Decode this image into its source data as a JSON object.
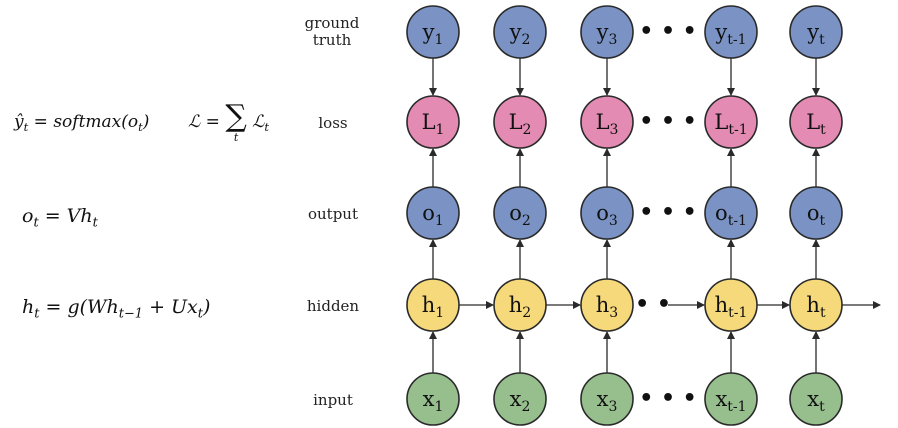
{
  "equations": {
    "yhat": {
      "symbol": "ŷ",
      "sub": "t",
      "rhs": "softmax(o",
      "rhs_sub": "t",
      "close": ")"
    },
    "loss": {
      "lhs": "ℒ",
      "eq": "=",
      "sum": "∑",
      "sum_sub": "t",
      "term": "ℒ",
      "term_sub": "t"
    },
    "output": {
      "lhs": "o",
      "lhs_sub": "t",
      "rhs": "= Vh",
      "rhs_sub": "t"
    },
    "hidden": {
      "lhs": "h",
      "lhs_sub": "t",
      "rhs1": "= g(Wh",
      "rhs1_sub": "t−1",
      "rhs2": "+ Ux",
      "rhs2_sub": "t",
      "close": ")"
    }
  },
  "row_labels": {
    "ground_truth": [
      "ground",
      "truth"
    ],
    "loss": "loss",
    "output": "output",
    "hidden": "hidden",
    "input": "input"
  },
  "colors": {
    "ground_truth": "#7a93c4",
    "loss": "#e38bb3",
    "output": "#7a93c4",
    "hidden": "#f6d97a",
    "input": "#97bf8e",
    "stroke": "#2a2a2a"
  },
  "rows": {
    "ground_truth": {
      "letter": "y",
      "subs": [
        "1",
        "2",
        "3",
        "t-1",
        "t"
      ]
    },
    "loss": {
      "letter": "L",
      "subs": [
        "1",
        "2",
        "3",
        "t-1",
        "t"
      ]
    },
    "output": {
      "letter": "o",
      "subs": [
        "1",
        "2",
        "3",
        "t-1",
        "t"
      ]
    },
    "hidden": {
      "letter": "h",
      "subs": [
        "1",
        "2",
        "3",
        "t-1",
        "t"
      ]
    },
    "input": {
      "letter": "x",
      "subs": [
        "1",
        "2",
        "3",
        "t-1",
        "t"
      ]
    }
  },
  "ellipsis": "• • •",
  "ellipsis_hidden": "• •"
}
